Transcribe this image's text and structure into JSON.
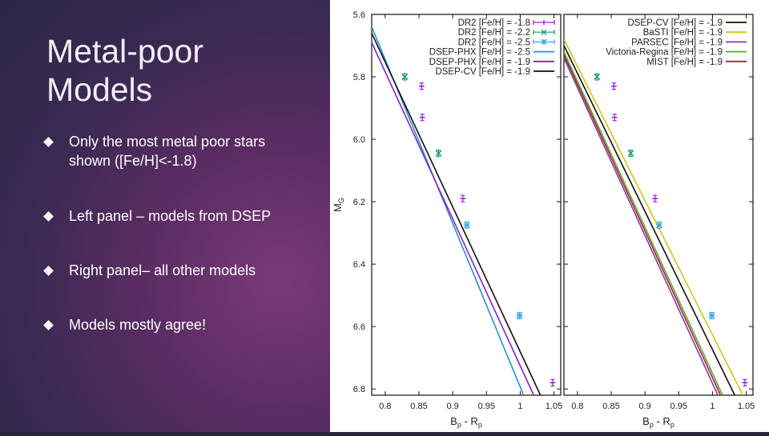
{
  "slide": {
    "title_line1": "Metal-poor",
    "title_line2": "Models",
    "bullets": [
      {
        "text": "Only the most metal poor stars shown ([Fe/H]<-1.8)"
      },
      {
        "text": "Left panel – models from DSEP"
      },
      {
        "text": "Right panel– all other models"
      },
      {
        "text": "Models mostly agree!"
      }
    ],
    "colors": {
      "background": "#3a2a52",
      "accent": "#7a3a78",
      "text": "#ffffff"
    }
  },
  "chart_data": [
    {
      "type": "scatter",
      "panel": "left",
      "xlabel": "B",
      "xlabel_subs": [
        "p",
        "p"
      ],
      "xlabel_sep": " - R",
      "ylabel": "M",
      "ylabel_sub": "G",
      "xlim": [
        0.78,
        1.06
      ],
      "ylim": [
        5.6,
        6.82
      ],
      "y_inverted": true,
      "x_ticks": [
        "0.8",
        "0.85",
        "0.9",
        "0.95",
        "1",
        "1.05"
      ],
      "y_ticks": [
        "5.6",
        "5.8",
        "6.0",
        "6.2",
        "6.4",
        "6.6",
        "6.8"
      ],
      "legend_position": "top-right",
      "series": [
        {
          "name": "DR2 [Fe/H] = -1.8",
          "kind": "points",
          "marker": "plus",
          "color": "#9b1fd1",
          "x": [
            0.854,
            0.855,
            0.915,
            1.048
          ],
          "y": [
            5.83,
            5.93,
            6.19,
            6.78
          ]
        },
        {
          "name": "DR2 [Fe/H] = -2.2",
          "kind": "points",
          "marker": "x",
          "color": "#1a9e76",
          "x": [
            0.829,
            0.879
          ],
          "y": [
            5.8,
            6.045
          ]
        },
        {
          "name": "DR2 [Fe/H] = -2.5",
          "kind": "points",
          "marker": "star",
          "color": "#3ea8e0",
          "x": [
            0.921,
            0.999
          ],
          "y": [
            6.275,
            6.565
          ]
        },
        {
          "name": "DSEP-PHX [Fe/H] = -2.5",
          "kind": "line",
          "color": "#2a8fc9",
          "x": [
            0.78,
            1.005
          ],
          "y": [
            5.64,
            6.82
          ]
        },
        {
          "name": "DSEP-PHX [Fe/H] = -1.9",
          "kind": "line",
          "color": "#8a1fc4",
          "x": [
            0.78,
            1.02
          ],
          "y": [
            5.69,
            6.82
          ]
        },
        {
          "name": "DSEP-CV [Fe/H] = -1.9",
          "kind": "line",
          "color": "#111111",
          "x": [
            0.78,
            1.03
          ],
          "y": [
            5.66,
            6.82
          ]
        }
      ]
    },
    {
      "type": "scatter",
      "panel": "right",
      "xlabel": "B",
      "xlabel_subs": [
        "p",
        "p"
      ],
      "xlabel_sep": " - R",
      "xlim": [
        0.78,
        1.06
      ],
      "ylim": [
        5.6,
        6.82
      ],
      "y_inverted": true,
      "x_ticks": [
        "0.8",
        "0.85",
        "0.9",
        "0.95",
        "1",
        "1.05"
      ],
      "legend_position": "top-right",
      "series": [
        {
          "name": "DSEP-CV [Fe/H] = -1.9",
          "kind": "line",
          "color": "#111111",
          "x": [
            0.78,
            1.033
          ],
          "y": [
            5.7,
            6.82
          ]
        },
        {
          "name": "BaSTI [Fe/H] = -1.9",
          "kind": "line",
          "color": "#d4c21a",
          "x": [
            0.78,
            1.045
          ],
          "y": [
            5.68,
            6.82
          ]
        },
        {
          "name": "PARSEC [Fe/H] = -1.9",
          "kind": "line",
          "color": "#7a3fb0",
          "x": [
            0.78,
            1.008
          ],
          "y": [
            5.74,
            6.82
          ]
        },
        {
          "name": "Victoria-Regina [Fe/H] = -1.9",
          "kind": "line",
          "color": "#5aa832",
          "x": [
            0.78,
            1.015
          ],
          "y": [
            5.72,
            6.82
          ]
        },
        {
          "name": "MIST [Fe/H] = -1.9",
          "kind": "line",
          "color": "#b01c2a",
          "x": [
            0.78,
            1.012
          ],
          "y": [
            5.73,
            6.82
          ]
        },
        {
          "name": "",
          "kind": "points",
          "marker": "plus",
          "color": "#9b1fd1",
          "x": [
            0.854,
            0.855,
            0.915,
            1.048
          ],
          "y": [
            5.83,
            5.93,
            6.19,
            6.78
          ]
        },
        {
          "name": "",
          "kind": "points",
          "marker": "x",
          "color": "#1a9e76",
          "x": [
            0.829,
            0.879
          ],
          "y": [
            5.8,
            6.045
          ]
        },
        {
          "name": "",
          "kind": "points",
          "marker": "star",
          "color": "#3ea8e0",
          "x": [
            0.921,
            0.999
          ],
          "y": [
            6.275,
            6.565
          ]
        }
      ]
    }
  ]
}
